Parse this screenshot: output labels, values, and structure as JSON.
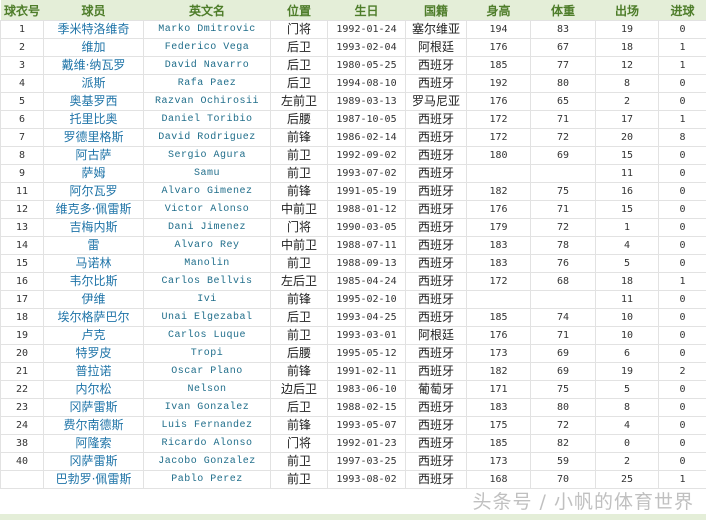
{
  "headers": [
    "球衣号",
    "球员",
    "英文名",
    "位置",
    "生日",
    "国籍",
    "身高",
    "体重",
    "出场",
    "进球"
  ],
  "rows": [
    [
      "1",
      "季米特洛维奇",
      "Marko Dmitrovic",
      "门将",
      "1992-01-24",
      "塞尔维亚",
      "194",
      "83",
      "19",
      "0"
    ],
    [
      "2",
      "维加",
      "Federico Vega",
      "后卫",
      "1993-02-04",
      "阿根廷",
      "176",
      "67",
      "18",
      "1"
    ],
    [
      "3",
      "戴维·纳瓦罗",
      "David Navarro",
      "后卫",
      "1980-05-25",
      "西班牙",
      "185",
      "77",
      "12",
      "1"
    ],
    [
      "4",
      "派斯",
      "Rafa Paez",
      "后卫",
      "1994-08-10",
      "西班牙",
      "192",
      "80",
      "8",
      "0"
    ],
    [
      "5",
      "奥基罗西",
      "Razvan Ochirosii",
      "左前卫",
      "1989-03-13",
      "罗马尼亚",
      "176",
      "65",
      "2",
      "0"
    ],
    [
      "6",
      "托里比奥",
      "Daniel Toribio",
      "后腰",
      "1987-10-05",
      "西班牙",
      "172",
      "71",
      "17",
      "1"
    ],
    [
      "7",
      "罗德里格斯",
      "David Rodriguez",
      "前锋",
      "1986-02-14",
      "西班牙",
      "172",
      "72",
      "20",
      "8"
    ],
    [
      "8",
      "阿古萨",
      "Sergio Agura",
      "前卫",
      "1992-09-02",
      "西班牙",
      "180",
      "69",
      "15",
      "0"
    ],
    [
      "9",
      "萨姆",
      "Samu",
      "前卫",
      "1993-07-02",
      "西班牙",
      "",
      "",
      "11",
      "0"
    ],
    [
      "11",
      "阿尔瓦罗",
      "Alvaro Gimenez",
      "前锋",
      "1991-05-19",
      "西班牙",
      "182",
      "75",
      "16",
      "0"
    ],
    [
      "12",
      "维克多·佩雷斯",
      "Victor Alonso",
      "中前卫",
      "1988-01-12",
      "西班牙",
      "176",
      "71",
      "15",
      "0"
    ],
    [
      "13",
      "吉梅内斯",
      "Dani Jimenez",
      "门将",
      "1990-03-05",
      "西班牙",
      "179",
      "72",
      "1",
      "0"
    ],
    [
      "14",
      "雷",
      "Alvaro Rey",
      "中前卫",
      "1988-07-11",
      "西班牙",
      "183",
      "78",
      "4",
      "0"
    ],
    [
      "15",
      "马诺林",
      "Manolin",
      "前卫",
      "1988-09-13",
      "西班牙",
      "183",
      "76",
      "5",
      "0"
    ],
    [
      "16",
      "韦尔比斯",
      "Carlos Bellvis",
      "左后卫",
      "1985-04-24",
      "西班牙",
      "172",
      "68",
      "18",
      "1"
    ],
    [
      "17",
      "伊维",
      "Ivi",
      "前锋",
      "1995-02-10",
      "西班牙",
      "",
      "",
      "11",
      "0"
    ],
    [
      "18",
      "埃尔格萨巴尔",
      "Unai Elgezabal",
      "后卫",
      "1993-04-25",
      "西班牙",
      "185",
      "74",
      "10",
      "0"
    ],
    [
      "19",
      "卢克",
      "Carlos Luque",
      "前卫",
      "1993-03-01",
      "阿根廷",
      "176",
      "71",
      "10",
      "0"
    ],
    [
      "20",
      "特罗皮",
      "Tropi",
      "后腰",
      "1995-05-12",
      "西班牙",
      "173",
      "69",
      "6",
      "0"
    ],
    [
      "21",
      "普拉诺",
      "Oscar Plano",
      "前锋",
      "1991-02-11",
      "西班牙",
      "182",
      "69",
      "19",
      "2"
    ],
    [
      "22",
      "内尔松",
      "Nelson",
      "边后卫",
      "1983-06-10",
      "葡萄牙",
      "171",
      "75",
      "5",
      "0"
    ],
    [
      "23",
      "冈萨雷斯",
      "Ivan Gonzalez",
      "后卫",
      "1988-02-15",
      "西班牙",
      "183",
      "80",
      "8",
      "0"
    ],
    [
      "24",
      "费尔南德斯",
      "Luis Fernandez",
      "前锋",
      "1993-05-07",
      "西班牙",
      "175",
      "72",
      "4",
      "0"
    ],
    [
      "38",
      "阿隆索",
      "Ricardo Alonso",
      "门将",
      "1992-01-23",
      "西班牙",
      "185",
      "82",
      "0",
      "0"
    ],
    [
      "40",
      "冈萨雷斯",
      "Jacobo Gonzalez",
      "前卫",
      "1997-03-25",
      "西班牙",
      "173",
      "59",
      "2",
      "0"
    ],
    [
      "",
      "巴勃罗·佩雷斯",
      "Pablo Perez",
      "前卫",
      "1993-08-02",
      "西班牙",
      "168",
      "70",
      "25",
      "1"
    ]
  ],
  "watermark": "头条号 / 小帆的体育世界",
  "colors": {
    "header_bg": "#e4eed8",
    "header_text": "#4e7d2a",
    "name_text": "#1f74a8"
  }
}
